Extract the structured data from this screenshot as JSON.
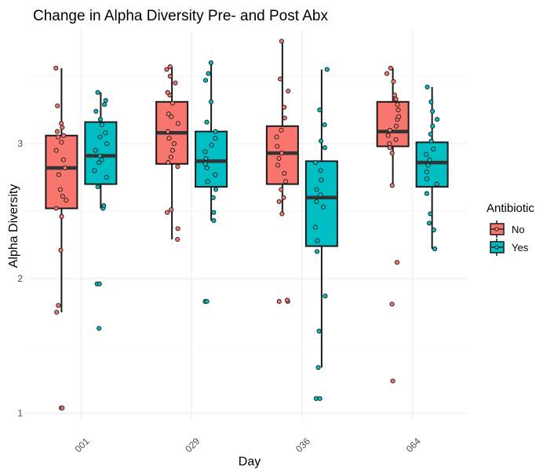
{
  "chart_data": {
    "type": "box",
    "title": "Change in Alpha Diversity Pre- and Post Abx",
    "xlabel": "Day",
    "ylabel": "Alpha Diversity",
    "categories": [
      "001",
      "029",
      "036",
      "064"
    ],
    "y_ticks": [
      1,
      2,
      3
    ],
    "ylim": [
      0.94,
      3.85
    ],
    "grid": true,
    "legend": {
      "title": "Antibiotic",
      "position": "right",
      "entries": [
        "No",
        "Yes"
      ]
    },
    "series": [
      {
        "name": "No",
        "color": "#F8766D",
        "boxes": [
          {
            "category": "001",
            "min": 1.75,
            "q1": 2.52,
            "median": 2.82,
            "q3": 3.06,
            "max": 3.56,
            "points": [
              1.04,
              1.04,
              1.75,
              1.8,
              2.21,
              2.46,
              2.52,
              2.58,
              2.61,
              2.66,
              2.77,
              2.82,
              2.88,
              2.95,
              3.01,
              3.05,
              3.06,
              3.09,
              3.12,
              3.15,
              3.28,
              3.56
            ]
          },
          {
            "category": "029",
            "min": 2.29,
            "q1": 2.85,
            "median": 3.08,
            "q3": 3.31,
            "max": 3.57,
            "points": [
              2.29,
              2.37,
              2.49,
              2.51,
              2.83,
              2.86,
              2.9,
              2.95,
              3.0,
              3.04,
              3.09,
              3.15,
              3.2,
              3.22,
              3.3,
              3.36,
              3.38,
              3.45,
              3.5,
              3.57,
              3.55
            ]
          },
          {
            "category": "036",
            "min": 2.48,
            "q1": 2.7,
            "median": 2.93,
            "q3": 3.13,
            "max": 3.76,
            "points": [
              1.83,
              1.83,
              1.84,
              2.48,
              2.57,
              2.6,
              2.66,
              2.72,
              2.78,
              2.84,
              2.89,
              2.93,
              2.98,
              3.05,
              3.1,
              3.19,
              3.27,
              3.39,
              3.48,
              3.76
            ]
          },
          {
            "category": "064",
            "min": 2.69,
            "q1": 2.98,
            "median": 3.09,
            "q3": 3.31,
            "max": 3.56,
            "points": [
              1.24,
              1.81,
              2.12,
              2.69,
              2.93,
              2.97,
              3.0,
              3.03,
              3.06,
              3.1,
              3.13,
              3.18,
              3.2,
              3.25,
              3.29,
              3.33,
              3.36,
              3.46,
              3.52,
              3.56
            ]
          }
        ]
      },
      {
        "name": "Yes",
        "color": "#00BFC4",
        "boxes": [
          {
            "category": "001",
            "min": 2.52,
            "q1": 2.7,
            "median": 2.91,
            "q3": 3.16,
            "max": 3.38,
            "points": [
              1.63,
              1.96,
              1.96,
              2.52,
              2.54,
              2.68,
              2.75,
              2.8,
              2.86,
              2.88,
              2.91,
              2.95,
              3.0,
              3.05,
              3.08,
              3.14,
              3.18,
              3.24,
              3.29,
              3.32,
              3.38
            ]
          },
          {
            "category": "029",
            "min": 2.43,
            "q1": 2.68,
            "median": 2.87,
            "q3": 3.09,
            "max": 3.6,
            "points": [
              1.83,
              1.83,
              2.43,
              2.49,
              2.6,
              2.66,
              2.72,
              2.77,
              2.82,
              2.85,
              2.89,
              2.94,
              2.99,
              3.04,
              3.09,
              3.16,
              3.31,
              3.47,
              3.52,
              3.6
            ]
          },
          {
            "category": "036",
            "min": 1.34,
            "q1": 2.24,
            "median": 2.6,
            "q3": 2.87,
            "max": 3.55,
            "points": [
              1.11,
              1.11,
              1.34,
              1.61,
              1.87,
              2.2,
              2.28,
              2.38,
              2.53,
              2.57,
              2.62,
              2.66,
              2.73,
              2.8,
              2.86,
              2.97,
              3.02,
              3.14,
              3.25,
              3.55
            ]
          },
          {
            "category": "064",
            "min": 2.22,
            "q1": 2.68,
            "median": 2.86,
            "q3": 3.01,
            "max": 3.42,
            "points": [
              2.22,
              2.36,
              2.41,
              2.48,
              2.63,
              2.7,
              2.74,
              2.79,
              2.84,
              2.88,
              2.92,
              2.96,
              3.02,
              3.07,
              3.13,
              3.18,
              3.24,
              3.31,
              3.42
            ]
          }
        ]
      }
    ]
  }
}
